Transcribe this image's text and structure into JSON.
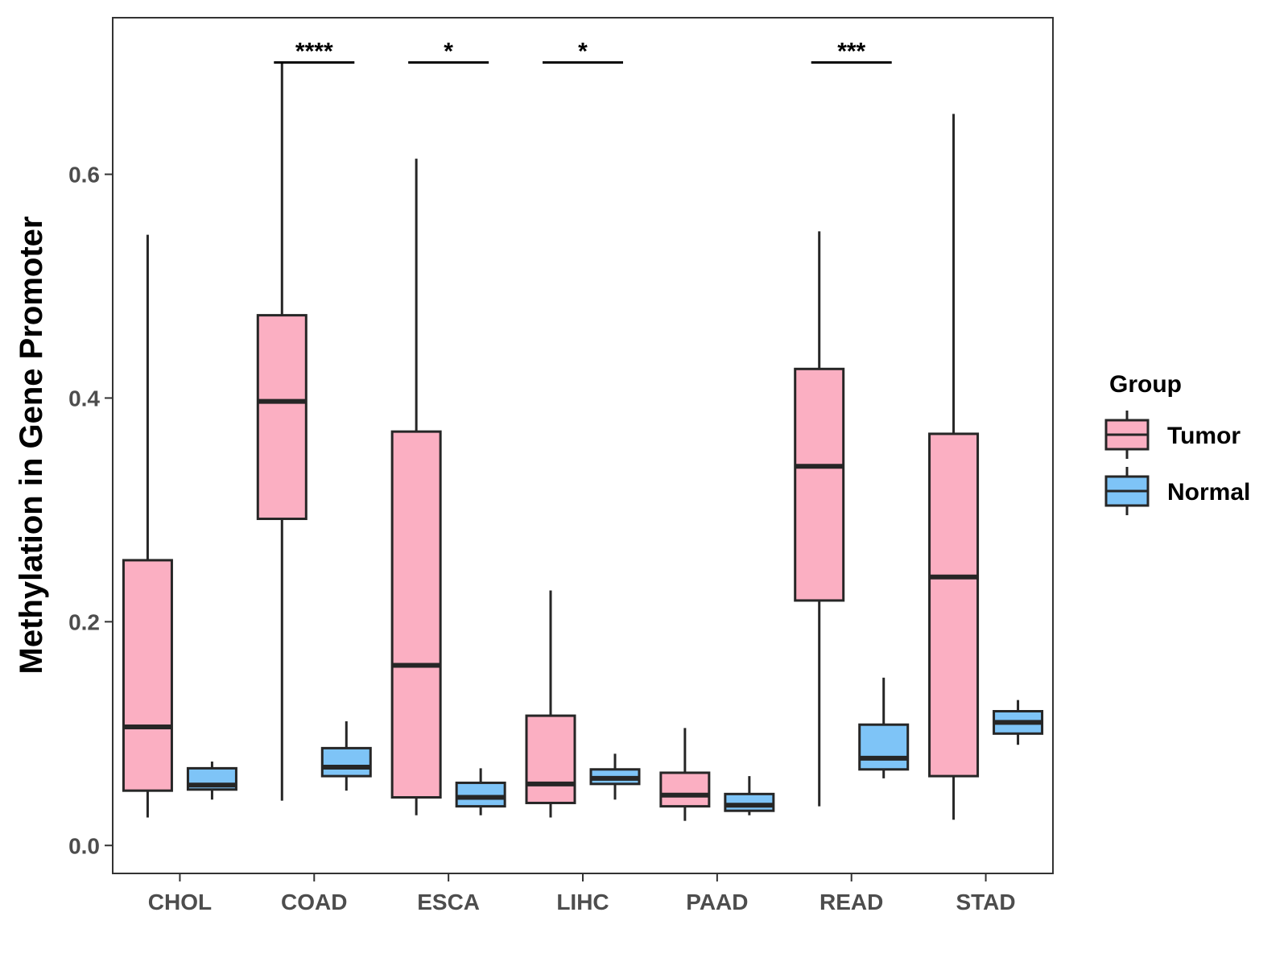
{
  "chart_data": {
    "type": "boxplot",
    "title": "",
    "xlabel": "",
    "ylabel": "Methylation in Gene Promoter",
    "ylim": [
      -0.025,
      0.74
    ],
    "yticks": [
      0.0,
      0.2,
      0.4,
      0.6
    ],
    "ytick_labels": [
      "0.0",
      "0.2",
      "0.4",
      "0.6"
    ],
    "grid": false,
    "categories": [
      "CHOL",
      "COAD",
      "ESCA",
      "LIHC",
      "PAAD",
      "READ",
      "STAD"
    ],
    "legend": {
      "title": "Group",
      "position": "right",
      "entries": [
        {
          "name": "Tumor",
          "color": "#FBAFC2"
        },
        {
          "name": "Normal",
          "color": "#7EC4F7"
        }
      ]
    },
    "series": [
      {
        "name": "Tumor",
        "color": "#FBAFC2",
        "boxes": [
          {
            "min": 0.025,
            "q1": 0.049,
            "median": 0.106,
            "q3": 0.255,
            "max": 0.546
          },
          {
            "min": 0.04,
            "q1": 0.292,
            "median": 0.397,
            "q3": 0.474,
            "max": 0.7
          },
          {
            "min": 0.027,
            "q1": 0.043,
            "median": 0.161,
            "q3": 0.37,
            "max": 0.614
          },
          {
            "min": 0.025,
            "q1": 0.038,
            "median": 0.055,
            "q3": 0.116,
            "max": 0.228
          },
          {
            "min": 0.022,
            "q1": 0.035,
            "median": 0.045,
            "q3": 0.065,
            "max": 0.105
          },
          {
            "min": 0.035,
            "q1": 0.219,
            "median": 0.339,
            "q3": 0.426,
            "max": 0.549
          },
          {
            "min": 0.023,
            "q1": 0.062,
            "median": 0.24,
            "q3": 0.368,
            "max": 0.654
          }
        ]
      },
      {
        "name": "Normal",
        "color": "#7EC4F7",
        "boxes": [
          {
            "min": 0.041,
            "q1": 0.05,
            "median": 0.054,
            "q3": 0.069,
            "max": 0.075
          },
          {
            "min": 0.049,
            "q1": 0.062,
            "median": 0.07,
            "q3": 0.087,
            "max": 0.111
          },
          {
            "min": 0.027,
            "q1": 0.035,
            "median": 0.043,
            "q3": 0.056,
            "max": 0.069
          },
          {
            "min": 0.041,
            "q1": 0.055,
            "median": 0.06,
            "q3": 0.068,
            "max": 0.082
          },
          {
            "min": 0.027,
            "q1": 0.031,
            "median": 0.036,
            "q3": 0.046,
            "max": 0.062
          },
          {
            "min": 0.06,
            "q1": 0.068,
            "median": 0.078,
            "q3": 0.108,
            "max": 0.15
          },
          {
            "min": 0.09,
            "q1": 0.1,
            "median": 0.11,
            "q3": 0.12,
            "max": 0.13
          }
        ]
      }
    ],
    "significance": [
      {
        "category": "COAD",
        "label": "****",
        "y": 0.7
      },
      {
        "category": "ESCA",
        "label": "*",
        "y": 0.7
      },
      {
        "category": "LIHC",
        "label": "*",
        "y": 0.7
      },
      {
        "category": "READ",
        "label": "***",
        "y": 0.7
      }
    ]
  }
}
